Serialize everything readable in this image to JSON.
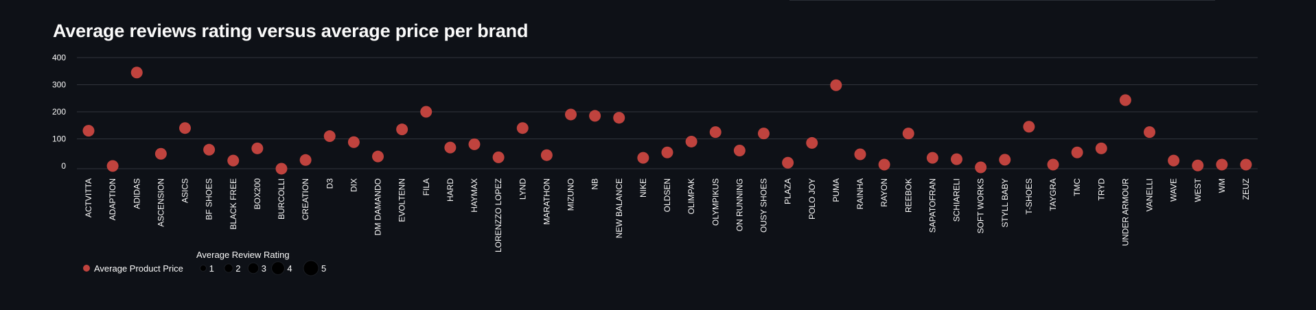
{
  "title": "Average reviews rating versus average price per brand",
  "chart_data": {
    "type": "scatter",
    "title": "Average reviews rating versus average price per brand",
    "xlabel": "",
    "ylabel": "",
    "ylim": [
      0,
      400
    ],
    "yticks": [
      "0",
      "100",
      "200",
      "300",
      "400"
    ],
    "grid": true,
    "legend_placement": "bottom-left",
    "categories": [
      "ACTVITTA",
      "ADAPTION",
      "ADIDAS",
      "ASCENSION",
      "ASICS",
      "BF SHOES",
      "BLACK FREE",
      "BOX200",
      "BURCOLLI",
      "CREATION",
      "D3",
      "DIX",
      "DM DAMANDO",
      "EVOLTENN",
      "FILA",
      "HARD",
      "HAYMAX",
      "LORENZZO LOPEZ",
      "LYND",
      "MARATHON",
      "MIZUNO",
      "NB",
      "NEW BALANCE",
      "NIKE",
      "OLDSEN",
      "OLIMPAK",
      "OLYMPIKUS",
      "ON RUNNING",
      "OUSY SHOES",
      "PLAZA",
      "POLO JOY",
      "PUMA",
      "RAINHA",
      "RAYON",
      "REEBOK",
      "SAPATOFRAN",
      "SCHIARELI",
      "SOFT WORKS",
      "STYLL BABY",
      "T-SHOES",
      "TAYGRA",
      "TMC",
      "TRYD",
      "UNDER ARMOUR",
      "VANELLI",
      "WAVE",
      "WEST",
      "WM",
      "ZEUZ"
    ],
    "series": [
      {
        "name": "Average Product Price",
        "color": "#c0433e",
        "values": [
          130,
          0,
          345,
          45,
          140,
          60,
          20,
          65,
          -10,
          22,
          110,
          88,
          35,
          135,
          200,
          68,
          80,
          32,
          140,
          40,
          190,
          185,
          178,
          30,
          50,
          90,
          125,
          57,
          120,
          12,
          85,
          298,
          43,
          5,
          120,
          30,
          25,
          -5,
          23,
          145,
          5,
          50,
          65,
          243,
          125,
          20,
          2,
          5,
          5
        ]
      }
    ],
    "size_legend": {
      "title": "Average Review Rating",
      "values": [
        1,
        2,
        3,
        4,
        5
      ]
    }
  }
}
